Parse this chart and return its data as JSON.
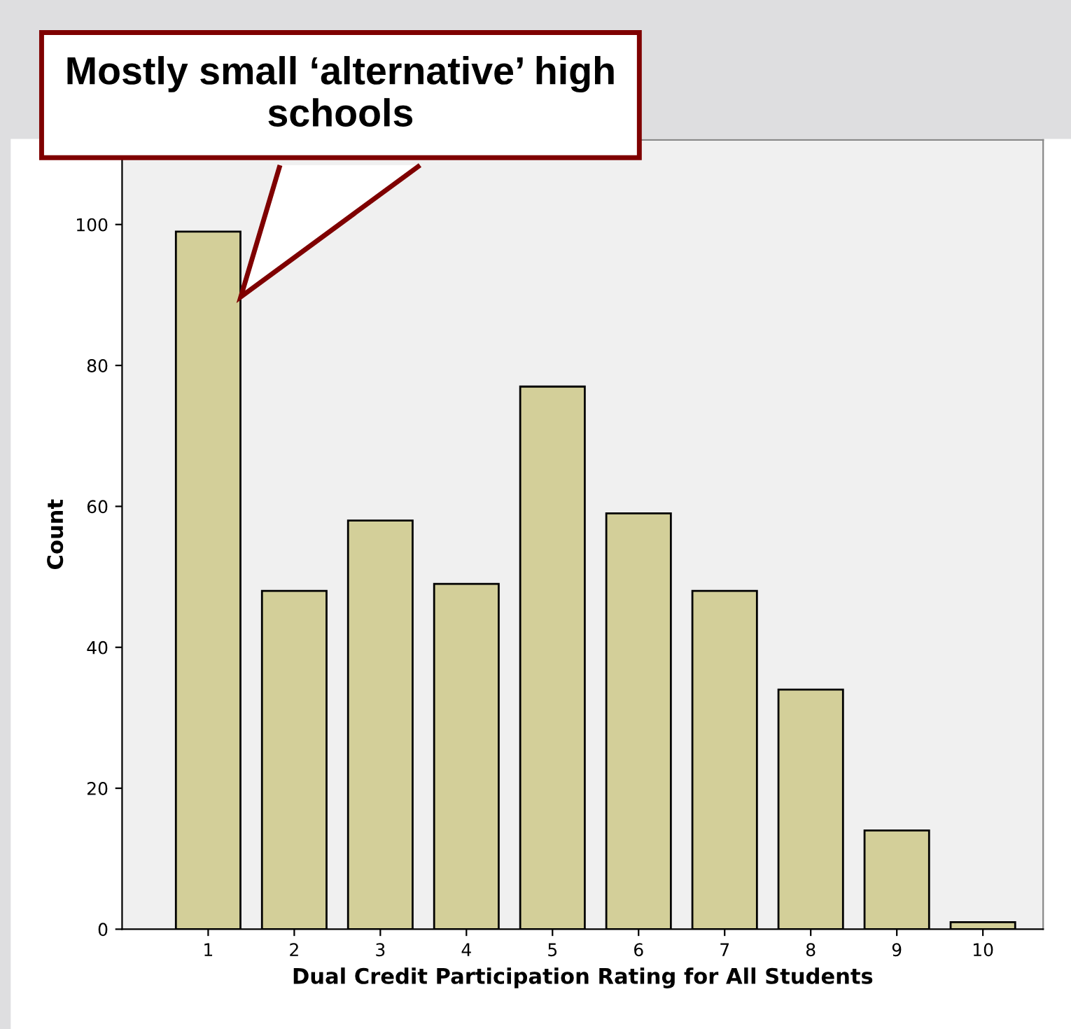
{
  "chart_data": {
    "type": "bar",
    "xlabel": "Dual Credit Participation Rating for All Students",
    "ylabel": "Count",
    "categories": [
      "1",
      "2",
      "3",
      "4",
      "5",
      "6",
      "7",
      "8",
      "9",
      "10"
    ],
    "values": [
      99,
      48,
      58,
      49,
      77,
      59,
      48,
      34,
      14,
      1
    ],
    "color": "#d3cf99",
    "ylim": [
      0,
      112
    ],
    "yticks": [
      0,
      20,
      40,
      60,
      80,
      100
    ],
    "grid": false,
    "legend": false,
    "annotations": [
      "Mostly small ‘alternative’ high schools"
    ]
  }
}
